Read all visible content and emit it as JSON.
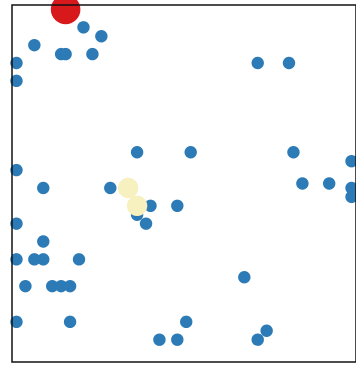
{
  "chart_data": {
    "type": "scatter",
    "title": "",
    "xlabel": "",
    "ylabel": "",
    "xlim": [
      0,
      38.5
    ],
    "ylim": [
      0,
      40
    ],
    "grid": false,
    "legend": "none",
    "marker_colors": {
      "blue": "#2c7bb6",
      "red": "#d7191c",
      "cream": "#f6f1bf"
    },
    "series": [
      {
        "color": "#2c7bb6",
        "size": "regular",
        "points": [
          [
            0.5,
            33.5
          ],
          [
            0.5,
            31.5
          ],
          [
            2.5,
            35.5
          ],
          [
            5.5,
            34.5
          ],
          [
            6.0,
            34.5
          ],
          [
            8.0,
            37.5
          ],
          [
            9.0,
            34.5
          ],
          [
            10.0,
            36.5
          ],
          [
            0.5,
            21.5
          ],
          [
            3.5,
            19.5
          ],
          [
            14.0,
            23.5
          ],
          [
            20.0,
            23.5
          ],
          [
            31.0,
            33.5
          ],
          [
            27.5,
            33.5
          ],
          [
            31.5,
            23.5
          ],
          [
            32.5,
            20.0
          ],
          [
            35.5,
            20.0
          ],
          [
            38.0,
            22.5
          ],
          [
            38.0,
            19.5
          ],
          [
            38.0,
            18.5
          ],
          [
            11.0,
            19.5
          ],
          [
            14.0,
            16.5
          ],
          [
            15.5,
            17.5
          ],
          [
            14.0,
            17.0
          ],
          [
            15.0,
            15.5
          ],
          [
            18.5,
            17.5
          ],
          [
            0.5,
            15.5
          ],
          [
            3.5,
            13.5
          ],
          [
            0.5,
            11.5
          ],
          [
            2.5,
            11.5
          ],
          [
            3.5,
            11.5
          ],
          [
            7.5,
            11.5
          ],
          [
            1.5,
            8.5
          ],
          [
            4.5,
            8.5
          ],
          [
            5.5,
            8.5
          ],
          [
            6.5,
            8.5
          ],
          [
            0.5,
            4.5
          ],
          [
            6.5,
            4.5
          ],
          [
            26.0,
            9.5
          ],
          [
            19.5,
            4.5
          ],
          [
            28.5,
            3.5
          ],
          [
            27.5,
            2.5
          ],
          [
            16.5,
            2.5
          ],
          [
            18.5,
            2.5
          ]
        ]
      },
      {
        "color": "#f6f1bf",
        "size": "large",
        "points": [
          [
            13.0,
            19.5
          ],
          [
            14.0,
            17.5
          ]
        ]
      },
      {
        "color": "#d7191c",
        "size": "xlarge",
        "points": [
          [
            6.0,
            39.5
          ]
        ]
      }
    ]
  }
}
